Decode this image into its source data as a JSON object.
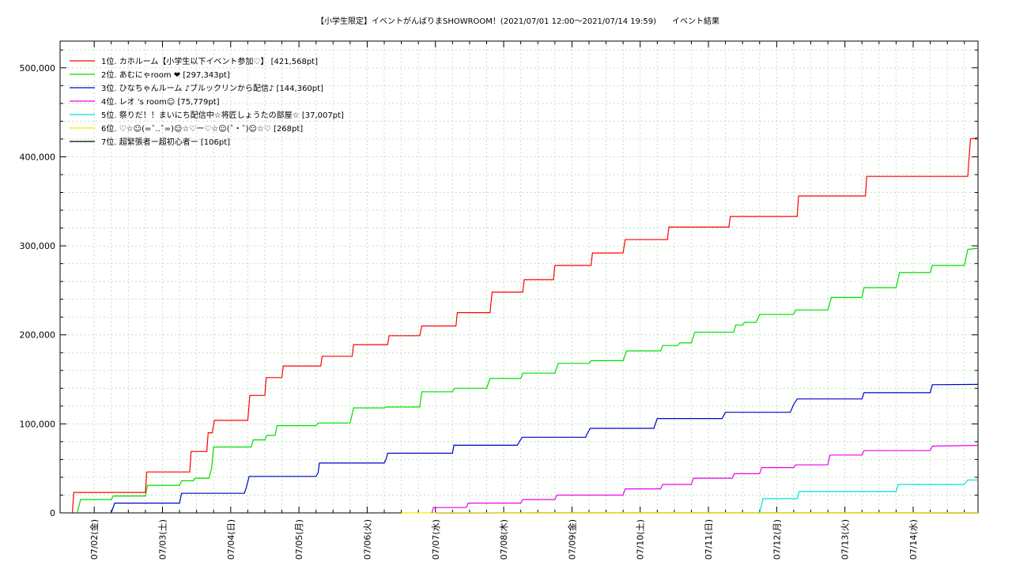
{
  "chart_data": {
    "type": "line",
    "title": "【小学生限定】イベントがんばりまSHOWROOM！(2021/07/01 12:00〜2021/07/14 19:59)　　イベント結果",
    "xlabel": "",
    "ylabel": "",
    "ylim": [
      0,
      530000
    ],
    "xlim": [
      1.5,
      14.95
    ],
    "grid": true,
    "legend_position": "top-left",
    "y_ticks": [
      0,
      100000,
      200000,
      300000,
      400000,
      500000
    ],
    "y_tick_labels": [
      "0",
      "100,000",
      "200,000",
      "300,000",
      "400,000",
      "500,000"
    ],
    "x_ticks": [
      2,
      3,
      4,
      5,
      6,
      7,
      8,
      9,
      10,
      11,
      12,
      13,
      14
    ],
    "x_tick_labels": [
      "07/02(金)",
      "07/03(土)",
      "07/04(日)",
      "07/05(月)",
      "07/06(火)",
      "07/07(水)",
      "07/08(木)",
      "07/09(金)",
      "07/10(土)",
      "07/11(日)",
      "07/12(月)",
      "07/13(火)",
      "07/14(水)"
    ],
    "series": [
      {
        "name": "1位. カホルーム【小学生以下イベント参加♡】 [421,568pt]",
        "color": "#ff0000",
        "points": [
          [
            1.68,
            0
          ],
          [
            1.7,
            23000
          ],
          [
            2.75,
            23000
          ],
          [
            2.77,
            46000
          ],
          [
            3.4,
            46000
          ],
          [
            3.42,
            69000
          ],
          [
            3.65,
            69000
          ],
          [
            3.67,
            90000
          ],
          [
            3.73,
            90000
          ],
          [
            3.76,
            104000
          ],
          [
            4.25,
            104000
          ],
          [
            4.28,
            132000
          ],
          [
            4.5,
            132000
          ],
          [
            4.52,
            152000
          ],
          [
            4.75,
            152000
          ],
          [
            4.77,
            165000
          ],
          [
            5.32,
            165000
          ],
          [
            5.34,
            176000
          ],
          [
            5.78,
            176000
          ],
          [
            5.8,
            189000
          ],
          [
            6.3,
            189000
          ],
          [
            6.32,
            199000
          ],
          [
            6.77,
            199000
          ],
          [
            6.8,
            210000
          ],
          [
            7.3,
            210000
          ],
          [
            7.32,
            225000
          ],
          [
            7.8,
            225000
          ],
          [
            7.83,
            248000
          ],
          [
            8.28,
            248000
          ],
          [
            8.3,
            262000
          ],
          [
            8.73,
            262000
          ],
          [
            8.75,
            278000
          ],
          [
            9.28,
            278000
          ],
          [
            9.3,
            292000
          ],
          [
            9.75,
            292000
          ],
          [
            9.78,
            307000
          ],
          [
            10.4,
            307000
          ],
          [
            10.42,
            321000
          ],
          [
            11.3,
            321000
          ],
          [
            11.32,
            333000
          ],
          [
            12.3,
            333000
          ],
          [
            12.32,
            356000
          ],
          [
            13.3,
            356000
          ],
          [
            13.32,
            378000
          ],
          [
            14.8,
            378000
          ],
          [
            14.82,
            400000
          ],
          [
            14.84,
            420000
          ],
          [
            14.95,
            421568
          ]
        ]
      },
      {
        "name": "2位. あむにゃroom ❤ [297,343pt]",
        "color": "#00dd00",
        "points": [
          [
            1.75,
            0
          ],
          [
            1.8,
            15000
          ],
          [
            2.25,
            15000
          ],
          [
            2.28,
            19000
          ],
          [
            2.75,
            19000
          ],
          [
            2.78,
            31000
          ],
          [
            3.25,
            31000
          ],
          [
            3.28,
            36000
          ],
          [
            3.45,
            36000
          ],
          [
            3.48,
            39000
          ],
          [
            3.68,
            39000
          ],
          [
            3.72,
            50000
          ],
          [
            3.75,
            74000
          ],
          [
            4.3,
            74000
          ],
          [
            4.33,
            82000
          ],
          [
            4.5,
            82000
          ],
          [
            4.53,
            87000
          ],
          [
            4.65,
            87000
          ],
          [
            4.68,
            98000
          ],
          [
            5.25,
            98000
          ],
          [
            5.28,
            101000
          ],
          [
            5.75,
            101000
          ],
          [
            5.8,
            118000
          ],
          [
            6.25,
            118000
          ],
          [
            6.28,
            119000
          ],
          [
            6.77,
            119000
          ],
          [
            6.8,
            136000
          ],
          [
            7.25,
            136000
          ],
          [
            7.28,
            140000
          ],
          [
            7.75,
            140000
          ],
          [
            7.8,
            151000
          ],
          [
            8.25,
            151000
          ],
          [
            8.28,
            157000
          ],
          [
            8.75,
            157000
          ],
          [
            8.8,
            168000
          ],
          [
            9.25,
            168000
          ],
          [
            9.28,
            171000
          ],
          [
            9.75,
            171000
          ],
          [
            9.8,
            182000
          ],
          [
            10.3,
            182000
          ],
          [
            10.33,
            188000
          ],
          [
            10.55,
            188000
          ],
          [
            10.58,
            191000
          ],
          [
            10.75,
            191000
          ],
          [
            10.8,
            203000
          ],
          [
            11.37,
            203000
          ],
          [
            11.4,
            211000
          ],
          [
            11.5,
            211000
          ],
          [
            11.53,
            214000
          ],
          [
            11.7,
            214000
          ],
          [
            11.75,
            223000
          ],
          [
            12.25,
            223000
          ],
          [
            12.28,
            228000
          ],
          [
            12.75,
            228000
          ],
          [
            12.8,
            242000
          ],
          [
            13.25,
            242000
          ],
          [
            13.28,
            253000
          ],
          [
            13.75,
            253000
          ],
          [
            13.8,
            270000
          ],
          [
            14.25,
            270000
          ],
          [
            14.28,
            278000
          ],
          [
            14.75,
            278000
          ],
          [
            14.8,
            296000
          ],
          [
            14.95,
            297343
          ]
        ]
      },
      {
        "name": "3位. ひなちゃんルーム ♪ブルックリンから配信♪ [144,360pt]",
        "color": "#0000cc",
        "points": [
          [
            2.25,
            0
          ],
          [
            2.3,
            11000
          ],
          [
            3.25,
            11000
          ],
          [
            3.28,
            22000
          ],
          [
            4.2,
            22000
          ],
          [
            4.23,
            29000
          ],
          [
            4.27,
            41000
          ],
          [
            5.25,
            41000
          ],
          [
            5.28,
            45000
          ],
          [
            5.3,
            56000
          ],
          [
            6.25,
            56000
          ],
          [
            6.28,
            61000
          ],
          [
            6.3,
            67000
          ],
          [
            7.25,
            67000
          ],
          [
            7.27,
            76000
          ],
          [
            8.2,
            76000
          ],
          [
            8.23,
            80000
          ],
          [
            8.27,
            85000
          ],
          [
            9.2,
            85000
          ],
          [
            9.23,
            90000
          ],
          [
            9.27,
            95000
          ],
          [
            10.2,
            95000
          ],
          [
            10.25,
            106000
          ],
          [
            11.2,
            106000
          ],
          [
            11.25,
            113000
          ],
          [
            12.2,
            113000
          ],
          [
            12.25,
            122000
          ],
          [
            12.3,
            128000
          ],
          [
            13.25,
            128000
          ],
          [
            13.28,
            135000
          ],
          [
            14.25,
            135000
          ],
          [
            14.28,
            144000
          ],
          [
            14.95,
            144360
          ]
        ]
      },
      {
        "name": "4位. レオ 's room☺ [75,779pt]",
        "color": "#ee00ee",
        "points": [
          [
            6.95,
            0
          ],
          [
            6.97,
            6000
          ],
          [
            7.45,
            6000
          ],
          [
            7.48,
            11000
          ],
          [
            8.25,
            11000
          ],
          [
            8.28,
            15000
          ],
          [
            8.75,
            15000
          ],
          [
            8.78,
            20000
          ],
          [
            9.75,
            20000
          ],
          [
            9.78,
            27000
          ],
          [
            10.3,
            27000
          ],
          [
            10.33,
            32000
          ],
          [
            10.75,
            32000
          ],
          [
            10.78,
            39000
          ],
          [
            11.35,
            39000
          ],
          [
            11.38,
            44000
          ],
          [
            11.75,
            44000
          ],
          [
            11.78,
            51000
          ],
          [
            12.25,
            51000
          ],
          [
            12.28,
            54000
          ],
          [
            12.75,
            54000
          ],
          [
            12.78,
            65000
          ],
          [
            13.25,
            65000
          ],
          [
            13.28,
            70000
          ],
          [
            14.25,
            70000
          ],
          [
            14.28,
            75000
          ],
          [
            14.95,
            75779
          ]
        ]
      },
      {
        "name": "5位. 祭りだ！！まいにち配信中☆将匠しょうたの部屋☆ [37,007pt]",
        "color": "#00dddd",
        "points": [
          [
            11.75,
            0
          ],
          [
            11.8,
            16000
          ],
          [
            12.3,
            16000
          ],
          [
            12.33,
            24000
          ],
          [
            13.75,
            24000
          ],
          [
            13.78,
            32000
          ],
          [
            14.75,
            32000
          ],
          [
            14.8,
            37000
          ],
          [
            14.95,
            37007
          ]
        ]
      },
      {
        "name": "6位. ♡☆☺(=ˆ..ˆ=)☺☆♡ー♡☆☺(ˆ・ˆ)☺☆♡ [268pt]",
        "color": "#eeee00",
        "points": [
          [
            6.5,
            0
          ],
          [
            7.2,
            150
          ],
          [
            14.95,
            268
          ]
        ]
      },
      {
        "name": "7位. 超緊張者ー超初心者ー [106pt]",
        "color": "#000000",
        "points": [
          [
            7.0,
            0
          ],
          [
            8.5,
            60
          ],
          [
            14.95,
            106
          ]
        ]
      }
    ]
  }
}
